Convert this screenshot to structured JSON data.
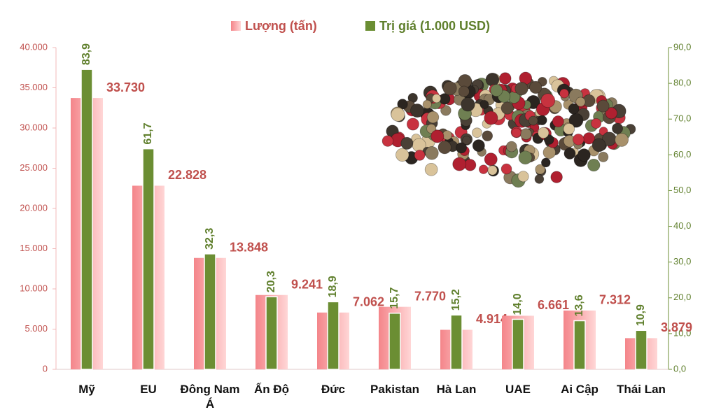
{
  "chart_data": {
    "type": "bar",
    "categories": [
      "Mỹ",
      "EU",
      "Đông Nam Á",
      "Ấn Độ",
      "Đức",
      "Pakistan",
      "Hà Lan",
      "UAE",
      "Ai Cập",
      "Thái Lan"
    ],
    "series": [
      {
        "name": "Lượng (tấn)",
        "color": "#f4858a",
        "label_color": "#c0504d",
        "values": [
          33730,
          22828,
          13848,
          9241,
          7062,
          7770,
          4914,
          6661,
          7312,
          3879
        ],
        "value_labels": [
          "33.730",
          "22.828",
          "13.848",
          "9.241",
          "7.062",
          "7.770",
          "4.914",
          "6.661",
          "7.312",
          "3.879"
        ]
      },
      {
        "name": "Trị giá (1.000 USD)",
        "color": "#6b8e33",
        "label_color": "#5f7f2c",
        "axis": "y2",
        "values": [
          83.9,
          61.7,
          32.3,
          20.3,
          18.9,
          15.7,
          15.2,
          14.0,
          13.6,
          10.9
        ],
        "value_labels": [
          "83,9",
          "61,7",
          "32,3",
          "20,3",
          "18,9",
          "15,7",
          "15,2",
          "14,0",
          "13,6",
          "10,9"
        ]
      }
    ],
    "ylim": [
      0,
      40000
    ],
    "yticks": [
      0,
      {
        "value": 5000,
        "label": "5.000"
      },
      {
        "value": 10000,
        "label": "10.000"
      },
      {
        "value": 15000,
        "label": "15.000"
      },
      {
        "value": 20000,
        "label": "20.000"
      },
      {
        "value": 25000,
        "label": "25.000"
      },
      {
        "value": 30000,
        "label": "30.000"
      },
      {
        "value": 35000,
        "label": "35.000"
      },
      {
        "value": 40000,
        "label": "40.000"
      }
    ],
    "y2lim": [
      0,
      90
    ],
    "y2ticks": [
      {
        "value": 0,
        "label": "0,0"
      },
      {
        "value": 10,
        "label": "10,0"
      },
      {
        "value": 20,
        "label": "20,0"
      },
      {
        "value": 30,
        "label": "30,0"
      },
      {
        "value": 40,
        "label": "40,0"
      },
      {
        "value": 50,
        "label": "50,0"
      },
      {
        "value": 60,
        "label": "60,0"
      },
      {
        "value": 70,
        "label": "70,0"
      },
      {
        "value": 80,
        "label": "80,0"
      },
      {
        "value": 90,
        "label": "90,0"
      }
    ],
    "grid": false,
    "legend": "top"
  }
}
